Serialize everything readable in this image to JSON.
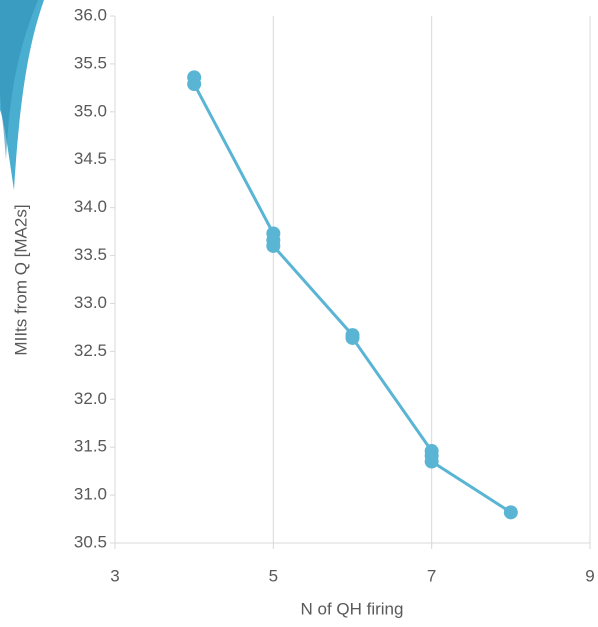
{
  "chart_data": {
    "type": "scatter-line",
    "x_label": "N of QH firing",
    "y_label": "MIIts from Q [MA2s]",
    "series": [
      {
        "color": "#5ab4d4",
        "x": [
          4,
          4,
          5,
          5,
          5,
          6,
          6,
          7,
          7,
          7,
          8
        ],
        "values": [
          35.36,
          35.29,
          33.73,
          33.66,
          33.6,
          32.67,
          32.64,
          31.46,
          31.41,
          31.35,
          30.82
        ]
      }
    ],
    "xlim": [
      3,
      9
    ],
    "xticks": [
      3,
      5,
      7,
      9
    ],
    "ylim": [
      30.5,
      36
    ],
    "yticks": [
      30.5,
      {
        "value": 31,
        "label": "31.0"
      },
      31.5,
      {
        "value": 32,
        "label": "32.0"
      },
      32.5,
      {
        "value": 33,
        "label": "33.0"
      },
      33.5,
      {
        "value": 34,
        "label": "34.0"
      },
      34.5,
      {
        "value": 35,
        "label": "35.0"
      },
      35.5,
      {
        "value": 36,
        "label": "36.0"
      }
    ],
    "grid": "x"
  }
}
